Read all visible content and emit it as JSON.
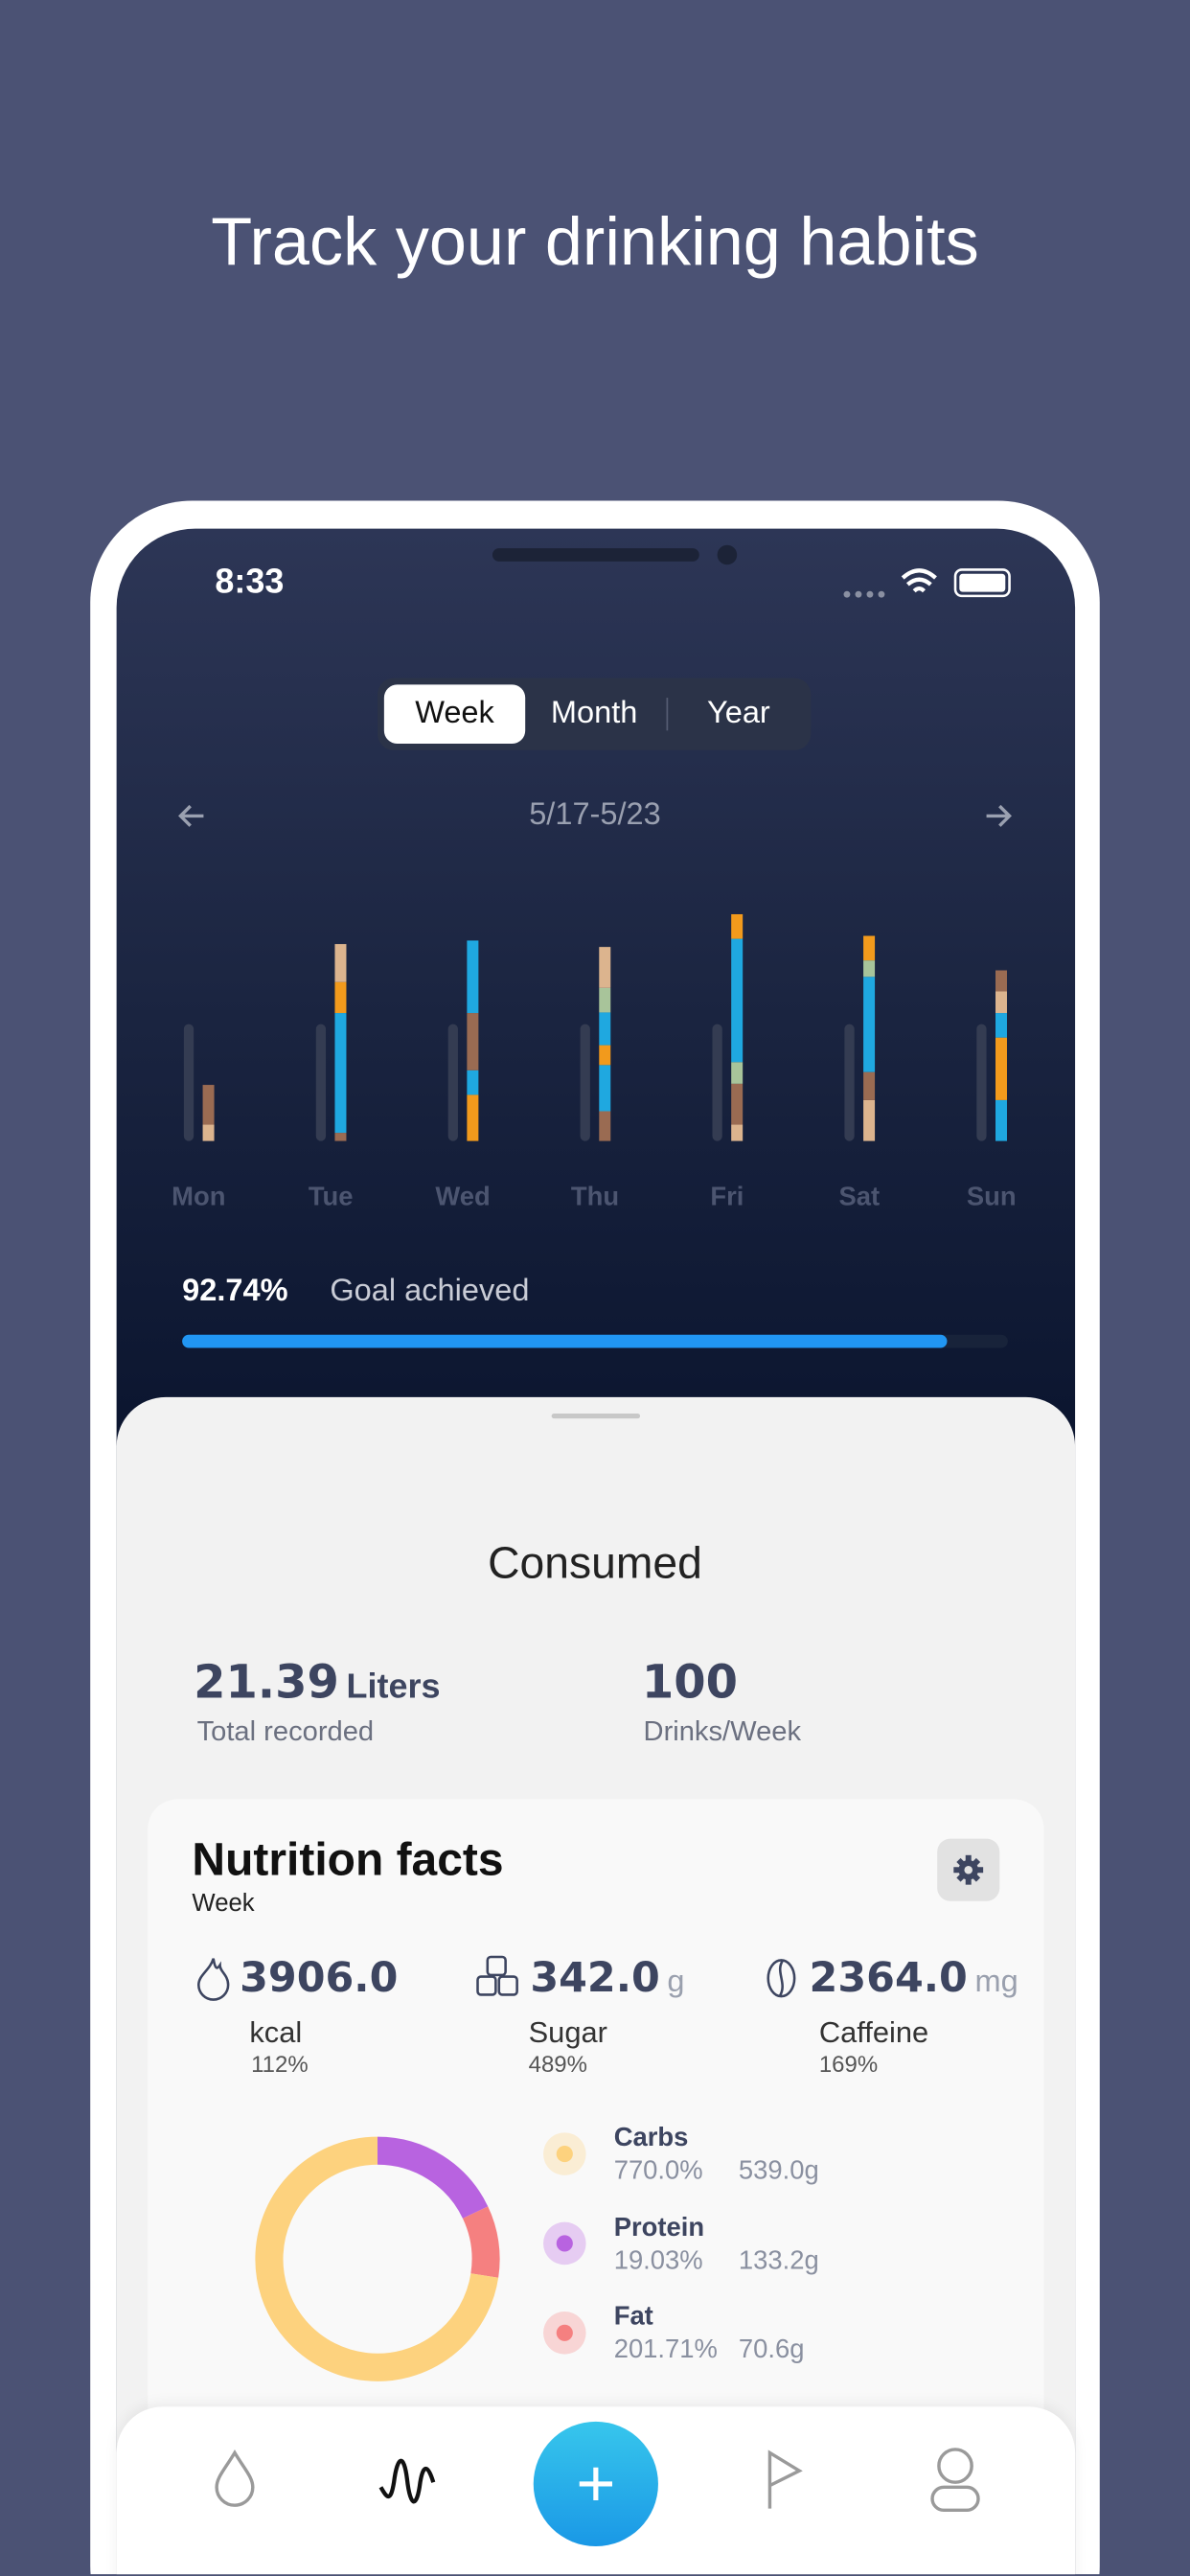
{
  "title": "Track your drinking habits",
  "status_bar": {
    "time": "8:33"
  },
  "tabs": [
    "Week",
    "Month",
    "Year"
  ],
  "date_range": "5/17-5/23",
  "chart_data": {
    "type": "stacked-bar",
    "categories": [
      "Mon",
      "Tue",
      "Wed",
      "Thu",
      "Fri",
      "Sat",
      "Sun"
    ],
    "goal": 2,
    "goal_color": "#343c52",
    "stacks": [
      [
        {
          "value": 0.28,
          "color": "#dcb48e"
        },
        {
          "value": 0.68,
          "color": "#9a6b52"
        }
      ],
      [
        {
          "value": 0.14,
          "color": "#9a6b52"
        },
        {
          "value": 2.05,
          "color": "#1fa8e0"
        },
        {
          "value": 0.53,
          "color": "#f29a1c"
        },
        {
          "value": 0.65,
          "color": "#dcb48e"
        }
      ],
      [
        {
          "value": 0.79,
          "color": "#f29a1c"
        },
        {
          "value": 0.42,
          "color": "#1fa8e0"
        },
        {
          "value": 0.98,
          "color": "#9a6b52"
        },
        {
          "value": 1.24,
          "color": "#1fa8e0"
        }
      ],
      [
        {
          "value": 0.51,
          "color": "#9a6b52"
        },
        {
          "value": 0.79,
          "color": "#1fa8e0"
        },
        {
          "value": 0.34,
          "color": "#f29a1c"
        },
        {
          "value": 0.56,
          "color": "#1fa8e0"
        },
        {
          "value": 0.42,
          "color": "#a8c49a"
        },
        {
          "value": 0.7,
          "color": "#dcb48e"
        }
      ],
      [
        {
          "value": 0.28,
          "color": "#dcb48e"
        },
        {
          "value": 0.7,
          "color": "#9a6b52"
        },
        {
          "value": 0.37,
          "color": "#a8c49a"
        },
        {
          "value": 2.11,
          "color": "#1fa8e0"
        },
        {
          "value": 0.42,
          "color": "#f29a1c"
        }
      ],
      [
        {
          "value": 0.7,
          "color": "#dcb48e"
        },
        {
          "value": 0.48,
          "color": "#9a6b52"
        },
        {
          "value": 1.63,
          "color": "#1fa8e0"
        },
        {
          "value": 0.28,
          "color": "#a8c49a"
        },
        {
          "value": 0.42,
          "color": "#f29a1c"
        }
      ],
      [
        {
          "value": 0.7,
          "color": "#1fa8e0"
        },
        {
          "value": 1.07,
          "color": "#f29a1c"
        },
        {
          "value": 0.42,
          "color": "#1fa8e0"
        },
        {
          "value": 0.37,
          "color": "#dcb48e"
        },
        {
          "value": 0.36,
          "color": "#9a6b52"
        }
      ]
    ]
  },
  "goal": {
    "value": 92.74,
    "label": "92.74%",
    "text": "Goal achieved",
    "color": "#2196f3"
  },
  "consumed": {
    "title": "Consumed",
    "total": {
      "value": "21.39",
      "unit": "Liters",
      "label": "Total recorded"
    },
    "drinks": {
      "value": "100",
      "label": "Drinks/Week"
    }
  },
  "nutrition": {
    "title": "Nutrition facts",
    "period": "Week",
    "stats": [
      {
        "value": "3906.0",
        "name": "kcal",
        "percent": "112%"
      },
      {
        "value": "342.0",
        "unit": "g",
        "name": "Sugar",
        "percent": "489%"
      },
      {
        "value": "2364.0",
        "unit": "mg",
        "name": "Caffeine",
        "percent": "169%"
      }
    ],
    "macros": {
      "type": "donut",
      "names": [
        "Carbs",
        "Protein",
        "Fat"
      ],
      "percents": [
        "770.0%",
        "19.03%",
        "201.71%"
      ],
      "values": [
        539,
        133.2,
        70.6
      ],
      "value_labels": [
        "539.0g",
        "133.2g",
        "70.6g"
      ],
      "colors": [
        "#fdd27e",
        "#b863e0",
        "#f58080"
      ]
    }
  }
}
